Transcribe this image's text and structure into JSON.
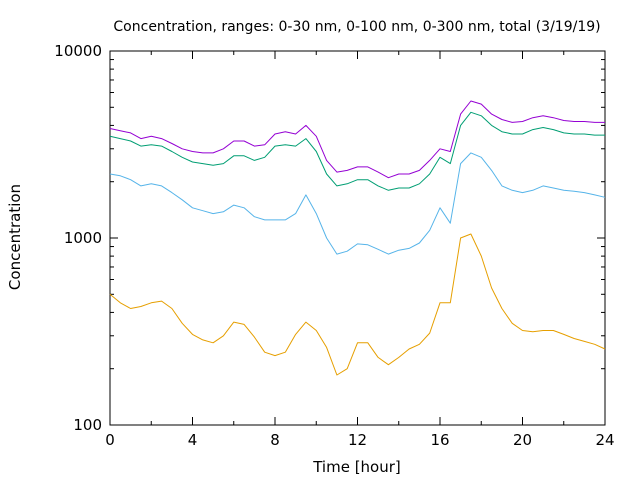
{
  "chart_data": {
    "type": "line",
    "title": "Concentration, ranges: 0-30 nm, 0-100 nm, 0-300 nm, total (3/19/19)",
    "xlabel": "Time [hour]",
    "ylabel": "Concentration",
    "xlim": [
      0,
      24
    ],
    "ylim": [
      100,
      10000
    ],
    "yscale": "log",
    "grid": false,
    "x_ticks": [
      0,
      4,
      8,
      12,
      16,
      20,
      24
    ],
    "x_tick_labels": [
      "0",
      "4",
      "8",
      "12",
      "16",
      "20",
      "24"
    ],
    "y_ticks": [
      100,
      1000,
      10000
    ],
    "y_tick_labels": [
      "100",
      "1000",
      "10000"
    ],
    "x": [
      0,
      0.5,
      1,
      1.5,
      2,
      2.5,
      3,
      3.5,
      4,
      4.5,
      5,
      5.5,
      6,
      6.5,
      7,
      7.5,
      8,
      8.5,
      9,
      9.5,
      10,
      10.5,
      11,
      11.5,
      12,
      12.5,
      13,
      13.5,
      14,
      14.5,
      15,
      15.5,
      16,
      16.5,
      17,
      17.5,
      18,
      18.5,
      19,
      19.5,
      20,
      20.5,
      21,
      21.5,
      22,
      22.5,
      23,
      23.5,
      24
    ],
    "series": [
      {
        "color": "#9400d3",
        "values": [
          3850,
          3750,
          3650,
          3400,
          3500,
          3400,
          3200,
          3000,
          2900,
          2850,
          2850,
          3000,
          3300,
          3300,
          3100,
          3150,
          3600,
          3700,
          3600,
          4000,
          3500,
          2600,
          2250,
          2300,
          2400,
          2400,
          2250,
          2100,
          2200,
          2200,
          2300,
          2600,
          3000,
          2900,
          4600,
          5400,
          5200,
          4600,
          4300,
          4150,
          4200,
          4400,
          4500,
          4400,
          4250,
          4200,
          4200,
          4150,
          4150
        ]
      },
      {
        "color": "#009e73",
        "values": [
          3500,
          3400,
          3300,
          3100,
          3150,
          3100,
          2900,
          2700,
          2550,
          2500,
          2450,
          2500,
          2750,
          2750,
          2600,
          2700,
          3100,
          3150,
          3100,
          3400,
          2900,
          2200,
          1900,
          1950,
          2050,
          2050,
          1900,
          1800,
          1850,
          1850,
          1950,
          2200,
          2700,
          2500,
          4000,
          4700,
          4500,
          4000,
          3700,
          3600,
          3600,
          3800,
          3900,
          3800,
          3650,
          3600,
          3600,
          3550,
          3550
        ]
      },
      {
        "color": "#56b4e9",
        "values": [
          2200,
          2150,
          2050,
          1900,
          1950,
          1900,
          1750,
          1600,
          1450,
          1400,
          1350,
          1380,
          1500,
          1450,
          1300,
          1250,
          1250,
          1250,
          1350,
          1700,
          1350,
          1000,
          820,
          850,
          930,
          920,
          870,
          820,
          860,
          880,
          940,
          1100,
          1450,
          1200,
          2500,
          2850,
          2700,
          2300,
          1900,
          1800,
          1750,
          1800,
          1900,
          1850,
          1800,
          1780,
          1750,
          1700,
          1650
        ]
      },
      {
        "color": "#e69f00",
        "values": [
          500,
          450,
          420,
          430,
          450,
          460,
          420,
          350,
          305,
          285,
          275,
          300,
          355,
          345,
          295,
          245,
          235,
          245,
          305,
          355,
          320,
          260,
          185,
          200,
          275,
          275,
          230,
          210,
          230,
          255,
          270,
          310,
          450,
          450,
          1000,
          1050,
          800,
          540,
          420,
          350,
          320,
          315,
          320,
          320,
          305,
          290,
          280,
          270,
          255
        ]
      }
    ]
  }
}
